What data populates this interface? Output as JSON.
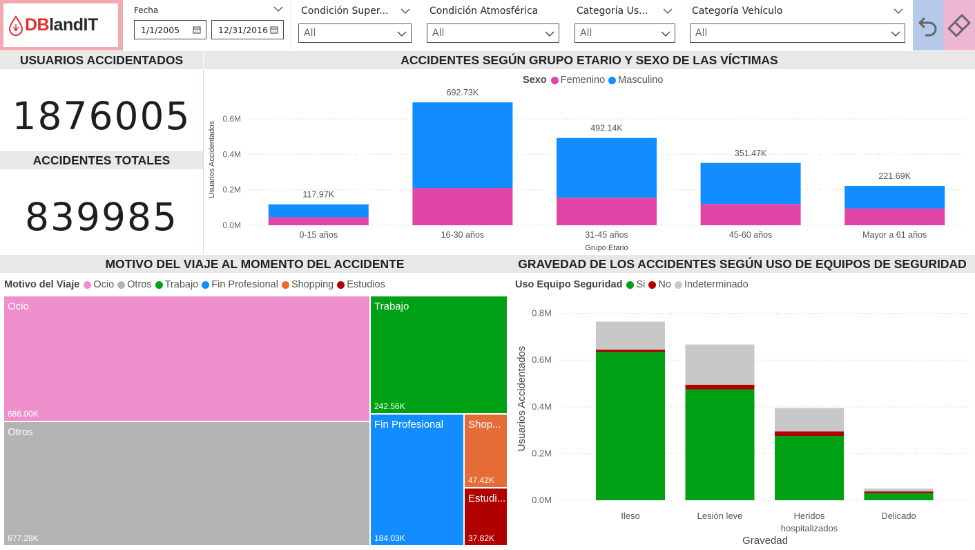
{
  "header": {
    "logo_text_a": "DB",
    "logo_text_b": "landIT",
    "date_filter": {
      "label": "Fecha",
      "start": "1/1/2005",
      "end": "12/31/2016"
    },
    "filters": [
      {
        "label": "Condición Super...",
        "value": "All"
      },
      {
        "label": "Condición Atmosférica",
        "value": "All"
      },
      {
        "label": "Categoría Us...",
        "value": "All"
      },
      {
        "label": "Categoría Vehículo",
        "value": "All"
      }
    ]
  },
  "kpis": {
    "users_title": "USUARIOS ACCIDENTADOS",
    "users_value": "1876005",
    "accidents_title": "ACCIDENTES TOTALES",
    "accidents_value": "839985"
  },
  "age_chart": {
    "header": "ACCIDENTES SEGÚN GRUPO ETARIO Y SEXO DE LAS VÍCTIMAS",
    "legend_title": "Sexo",
    "series_names": [
      "Femenino",
      "Masculino"
    ],
    "colors": [
      "#e044a7",
      "#118dff"
    ],
    "xlabel": "Grupo Etario",
    "ylabel": "Usuarios Accidentados",
    "y_ticks": [
      "0.0M",
      "0.2M",
      "0.4M",
      "0.6M"
    ]
  },
  "trip_chart": {
    "header": "MOTIVO DEL VIAJE AL MOMENTO DEL ACCIDENTE",
    "legend_title": "Motivo del Viaje",
    "legend": [
      {
        "name": "Ocio",
        "color": "#ee8fcb"
      },
      {
        "name": "Otros",
        "color": "#b3b3b3"
      },
      {
        "name": "Trabajo",
        "color": "#00a114"
      },
      {
        "name": "Fin Profesional",
        "color": "#118dff"
      },
      {
        "name": "Shopping",
        "color": "#e66c37"
      },
      {
        "name": "Estudios",
        "color": "#b00000"
      }
    ],
    "cells": [
      {
        "name": "Ocio",
        "value": "686.90K"
      },
      {
        "name": "Otros",
        "value": "677.28K"
      },
      {
        "name": "Trabajo",
        "value": "242.56K"
      },
      {
        "name": "Fin Profesional",
        "value": "184.03K"
      },
      {
        "name": "Shop...",
        "value": "47.42K"
      },
      {
        "name": "Estudi...",
        "value": "37.82K"
      }
    ]
  },
  "severity_chart": {
    "header": "GRAVEDAD DE LOS ACCIDENTES SEGÚN USO DE EQUIPOS DE SEGURIDAD",
    "legend_title": "Uso Equipo Seguridad",
    "series_names": [
      "Si",
      "No",
      "Indeterminado"
    ],
    "colors": [
      "#00a114",
      "#b00000",
      "#c8c8c8"
    ],
    "xlabel": "Gravedad",
    "ylabel": "Usuarios Accidentados",
    "y_ticks": [
      "0.0M",
      "0.2M",
      "0.4M",
      "0.6M",
      "0.8M"
    ]
  },
  "chart_data": [
    {
      "type": "bar",
      "stacked": true,
      "title": "ACCIDENTES SEGÚN GRUPO ETARIO Y SEXO DE LAS VÍCTIMAS",
      "xlabel": "Grupo Etario",
      "ylabel": "Usuarios Accidentados",
      "categories": [
        "0-15 años",
        "16-30 años",
        "31-45 años",
        "45-60 años",
        "Mayor a 61 años"
      ],
      "series": [
        {
          "name": "Femenino",
          "values": [
            45000,
            210000,
            155000,
            120000,
            95000
          ]
        },
        {
          "name": "Masculino",
          "values": [
            72970,
            482730,
            337140,
            231470,
            126690
          ]
        }
      ],
      "total_labels": [
        "117.97K",
        "692.73K",
        "492.14K",
        "351.47K",
        "221.69K"
      ],
      "totals": [
        117970,
        692730,
        492140,
        351470,
        221690
      ],
      "ylim": [
        0,
        740000
      ],
      "legend_position": "top"
    },
    {
      "type": "treemap",
      "title": "MOTIVO DEL VIAJE AL MOMENTO DEL ACCIDENTE",
      "categories": [
        "Ocio",
        "Otros",
        "Trabajo",
        "Fin Profesional",
        "Shopping",
        "Estudios"
      ],
      "values": [
        686900,
        677280,
        242560,
        184030,
        47420,
        37820
      ]
    },
    {
      "type": "bar",
      "stacked": true,
      "title": "GRAVEDAD DE LOS ACCIDENTES SEGÚN USO DE EQUIPOS DE SEGURIDAD",
      "xlabel": "Gravedad",
      "ylabel": "Usuarios Accidentados",
      "categories": [
        "Ileso",
        "Lesión leve",
        "Heridos hospitalizados",
        "Delicado"
      ],
      "series": [
        {
          "name": "Si",
          "values": [
            635000,
            475000,
            275000,
            30000
          ]
        },
        {
          "name": "No",
          "values": [
            10000,
            20000,
            20000,
            8000
          ]
        },
        {
          "name": "Indeterminado",
          "values": [
            120000,
            172000,
            100000,
            12000
          ]
        }
      ],
      "ylim": [
        0,
        870000
      ],
      "legend_position": "top"
    }
  ]
}
